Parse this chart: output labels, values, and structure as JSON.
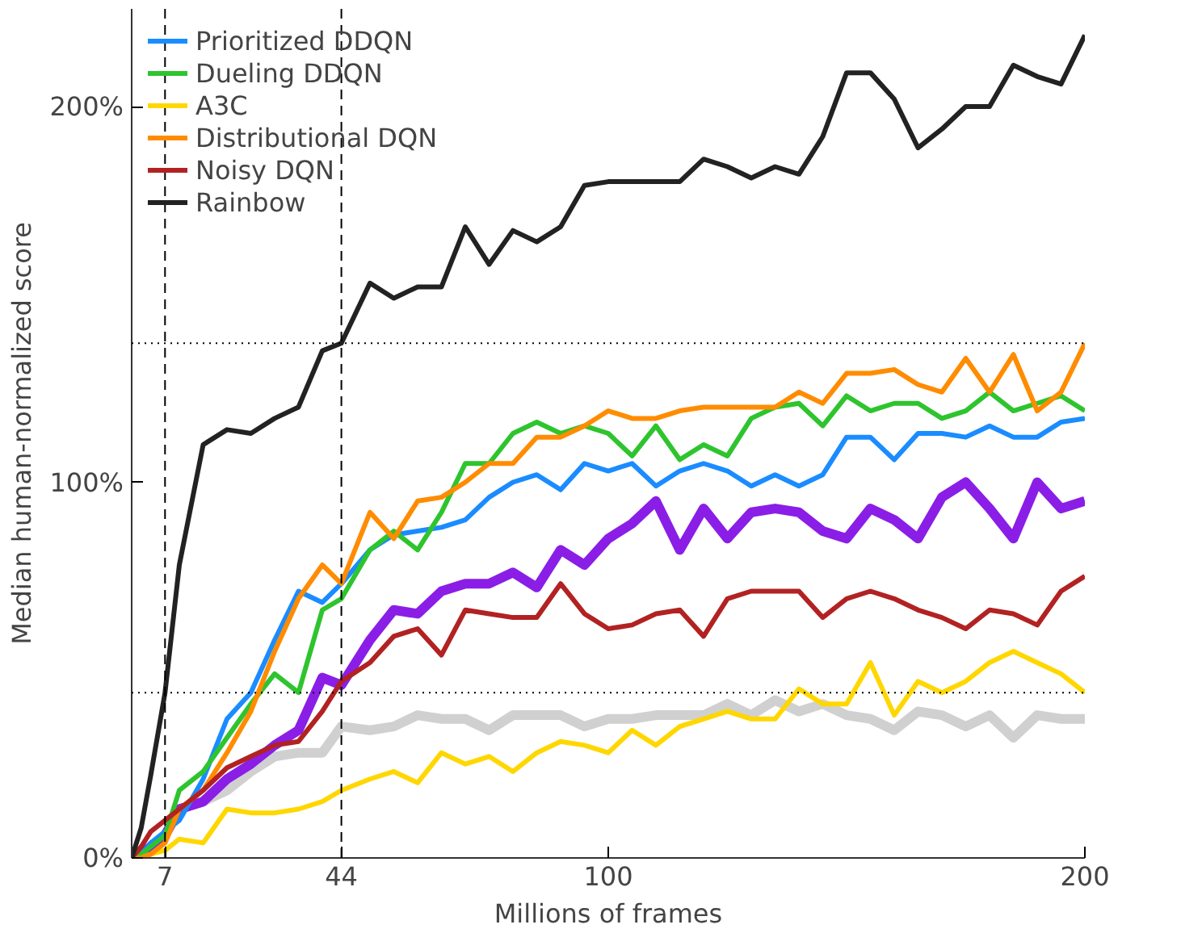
{
  "chart_data": {
    "type": "line",
    "xlabel": "Millions of frames",
    "ylabel": "Median human-normalized score",
    "x": [
      0,
      2,
      4,
      7,
      10,
      15,
      20,
      25,
      30,
      35,
      40,
      44,
      50,
      55,
      60,
      65,
      70,
      75,
      80,
      85,
      90,
      95,
      100,
      105,
      110,
      115,
      120,
      125,
      130,
      135,
      140,
      145,
      150,
      155,
      160,
      165,
      170,
      175,
      180,
      185,
      190,
      195,
      200
    ],
    "series": [
      {
        "color": "#d0d0d0",
        "values": [
          0,
          1,
          3,
          6,
          13,
          15,
          18,
          23,
          27,
          28,
          28,
          35,
          34,
          35,
          38,
          37,
          37,
          34,
          38,
          38,
          38,
          35,
          37,
          37,
          38,
          38,
          38,
          41,
          38,
          42,
          39,
          41,
          38,
          37,
          34,
          39,
          38,
          35,
          38,
          32,
          38,
          37,
          37
        ]
      },
      {
        "color": "#8a1ee6",
        "values": [
          0,
          1,
          3,
          6,
          13,
          15,
          21,
          25,
          30,
          34,
          48,
          46,
          58,
          66,
          65,
          71,
          73,
          73,
          76,
          72,
          82,
          78,
          85,
          89,
          95,
          82,
          93,
          85,
          92,
          93,
          92,
          87,
          85,
          93,
          90,
          85,
          96,
          100,
          93,
          85,
          100,
          93,
          95
        ]
      },
      {
        "name": "Prioritized DDQN",
        "color": "#1a8cff",
        "values": [
          0,
          1,
          4,
          7,
          10,
          21,
          37,
          44,
          58,
          71,
          68,
          73,
          82,
          86,
          87,
          88,
          90,
          96,
          100,
          102,
          98,
          105,
          103,
          105,
          99,
          103,
          105,
          103,
          99,
          102,
          99,
          102,
          112,
          112,
          106,
          113,
          113,
          112,
          115,
          112,
          112,
          116,
          117
        ]
      },
      {
        "name": "Dueling DDQN",
        "color": "#2ec42e",
        "values": [
          0,
          1,
          3,
          6,
          18,
          23,
          32,
          41,
          49,
          44,
          66,
          69,
          82,
          87,
          82,
          92,
          105,
          105,
          113,
          116,
          113,
          115,
          113,
          107,
          115,
          106,
          110,
          107,
          117,
          120,
          121,
          115,
          123,
          119,
          121,
          121,
          117,
          119,
          124,
          119,
          121,
          123,
          119
        ]
      },
      {
        "name": "A3C",
        "color": "#ffd700",
        "values": [
          0,
          0,
          1,
          2,
          5,
          4,
          13,
          12,
          12,
          13,
          15,
          18,
          21,
          23,
          20,
          28,
          25,
          27,
          23,
          28,
          31,
          30,
          28,
          34,
          30,
          35,
          37,
          39,
          37,
          37,
          45,
          41,
          41,
          52,
          38,
          47,
          44,
          47,
          52,
          55,
          52,
          49,
          44
        ]
      },
      {
        "name": "Distributional DQN",
        "color": "#ff8c00",
        "values": [
          0,
          0,
          1,
          4,
          13,
          18,
          28,
          39,
          55,
          69,
          78,
          73,
          92,
          85,
          95,
          96,
          100,
          105,
          105,
          112,
          112,
          115,
          119,
          117,
          117,
          119,
          120,
          120,
          120,
          120,
          124,
          121,
          129,
          129,
          130,
          126,
          124,
          133,
          124,
          134,
          119,
          124,
          137
        ]
      },
      {
        "name": "Noisy DQN",
        "color": "#b22222",
        "values": [
          0,
          3,
          7,
          10,
          13,
          18,
          24,
          27,
          30,
          31,
          39,
          47,
          52,
          59,
          61,
          54,
          66,
          65,
          64,
          64,
          73,
          65,
          61,
          62,
          65,
          66,
          59,
          69,
          71,
          71,
          71,
          64,
          69,
          71,
          69,
          66,
          64,
          61,
          66,
          65,
          62,
          71,
          75
        ]
      },
      {
        "name": "Rainbow",
        "color": "#222222",
        "values": [
          0,
          8,
          22,
          44,
          78,
          110,
          114,
          113,
          117,
          120,
          135,
          137,
          153,
          149,
          152,
          152,
          168,
          158,
          167,
          164,
          168,
          179,
          180,
          180,
          180,
          180,
          186,
          184,
          181,
          184,
          182,
          192,
          209,
          209,
          202,
          189,
          194,
          200,
          200,
          211,
          208,
          206,
          219
        ]
      }
    ],
    "xlim": [
      0,
      200
    ],
    "xticks": [
      7,
      44,
      100,
      200
    ],
    "ylim": [
      0,
      226
    ],
    "yticks": [
      {
        "value": 0,
        "label": "0%"
      },
      {
        "value": 100,
        "label": "100%"
      },
      {
        "value": 200,
        "label": "200%"
      }
    ],
    "ref_lines": [
      {
        "axis": "x",
        "value": 7,
        "line_style": "dashed"
      },
      {
        "axis": "x",
        "value": 44,
        "line_style": "dashed"
      },
      {
        "axis": "y",
        "value": 44,
        "line_style": "dotted"
      },
      {
        "axis": "y",
        "value": 137,
        "line_style": "dotted"
      }
    ],
    "legend": "top left",
    "grid": false
  }
}
